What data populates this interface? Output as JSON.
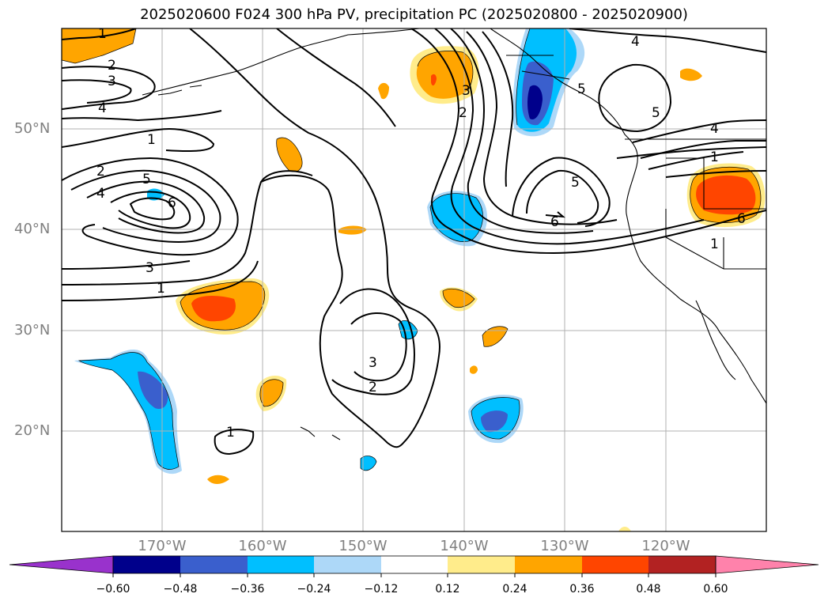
{
  "title": "2025020600 F024 300 hPa PV, precipitation PC (2025020800 - 2025020900)",
  "map": {
    "lat_labels": [
      "50°N",
      "40°N",
      "30°N",
      "20°N"
    ],
    "lon_labels": [
      "170°W",
      "160°W",
      "150°W",
      "140°W",
      "130°W",
      "120°W"
    ],
    "contour_labels": [
      "1",
      "2",
      "3",
      "4",
      "5",
      "6",
      "1",
      "2",
      "4",
      "5",
      "6",
      "3",
      "1",
      "3",
      "2",
      "1",
      "2",
      "3",
      "5",
      "6",
      "4",
      "5",
      "4",
      "1",
      "1"
    ],
    "colors": {
      "fill_pos_1": "#ffec8b",
      "fill_pos_2": "#ffa500",
      "fill_pos_3": "#ff4500",
      "fill_neg_1": "#add8f8",
      "fill_neg_2": "#00bfff",
      "fill_neg_3": "#3a5fcd",
      "fill_neg_4": "#00008b"
    }
  },
  "colorbar": {
    "ticks": [
      "−0.60",
      "−0.48",
      "−0.36",
      "−0.24",
      "−0.12",
      "0.12",
      "0.24",
      "0.36",
      "0.48",
      "0.60"
    ],
    "colors": [
      "#9932cc",
      "#00008b",
      "#3a5fcd",
      "#00bfff",
      "#add8f8",
      "#ffffff",
      "#ffec8b",
      "#ffa500",
      "#ff4500",
      "#b22222",
      "#ff82ab"
    ]
  }
}
